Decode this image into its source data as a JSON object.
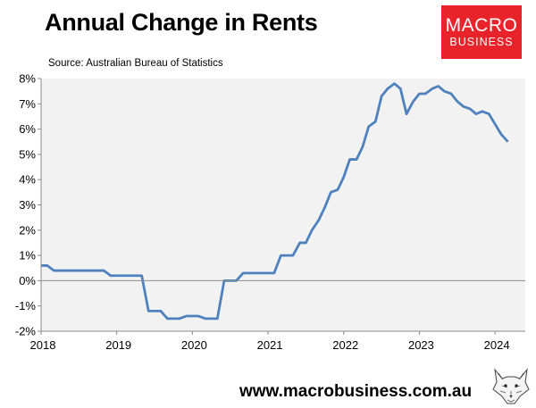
{
  "header": {
    "title": "Annual Change in Rents",
    "source": "Source: Australian Bureau of Statistics"
  },
  "logo": {
    "line1": "MACRO",
    "line2": "BUSINESS",
    "color": "#e8232a"
  },
  "footer": {
    "url": "www.macrobusiness.com.au",
    "mascot_icon": "fox-sketch-icon"
  },
  "chart_data": {
    "type": "line",
    "title": "Annual Change in Rents",
    "xlabel": "",
    "ylabel": "",
    "xlim": [
      2018,
      2024.4
    ],
    "ylim": [
      -2,
      8
    ],
    "grid": false,
    "background_color": "#f2f2f2",
    "line_color": "#4f81bd",
    "x_ticks": [
      2018,
      2019,
      2020,
      2021,
      2022,
      2023,
      2024
    ],
    "x_tick_labels": [
      "2018",
      "2019",
      "2020",
      "2021",
      "2022",
      "2023",
      "2024"
    ],
    "y_ticks": [
      -2,
      -1,
      0,
      1,
      2,
      3,
      4,
      5,
      6,
      7,
      8
    ],
    "y_tick_labels": [
      "-2%",
      "-1%",
      "0%",
      "1%",
      "2%",
      "3%",
      "4%",
      "5%",
      "6%",
      "7%",
      "8%"
    ],
    "series": [
      {
        "name": "",
        "x": [
          2018.0,
          2018.08,
          2018.17,
          2018.25,
          2018.33,
          2018.42,
          2018.5,
          2018.58,
          2018.67,
          2018.75,
          2018.83,
          2018.92,
          2019.0,
          2019.08,
          2019.17,
          2019.25,
          2019.33,
          2019.42,
          2019.5,
          2019.58,
          2019.67,
          2019.75,
          2019.83,
          2019.92,
          2020.0,
          2020.08,
          2020.17,
          2020.25,
          2020.33,
          2020.42,
          2020.5,
          2020.58,
          2020.67,
          2020.75,
          2020.83,
          2020.92,
          2021.0,
          2021.08,
          2021.17,
          2021.25,
          2021.33,
          2021.42,
          2021.5,
          2021.58,
          2021.67,
          2021.75,
          2021.83,
          2021.92,
          2022.0,
          2022.08,
          2022.17,
          2022.25,
          2022.33,
          2022.42,
          2022.5,
          2022.58,
          2022.67,
          2022.75,
          2022.83,
          2022.92,
          2023.0,
          2023.08,
          2023.17,
          2023.25,
          2023.33,
          2023.42,
          2023.5,
          2023.58,
          2023.67,
          2023.75,
          2023.83,
          2023.92,
          2024.0,
          2024.08,
          2024.17
        ],
        "y": [
          0.6,
          0.6,
          0.4,
          0.4,
          0.4,
          0.4,
          0.4,
          0.4,
          0.4,
          0.4,
          0.4,
          0.2,
          0.2,
          0.2,
          0.2,
          0.2,
          0.2,
          -1.2,
          -1.2,
          -1.2,
          -1.5,
          -1.5,
          -1.5,
          -1.4,
          -1.4,
          -1.4,
          -1.5,
          -1.5,
          -1.5,
          0.0,
          0.0,
          0.0,
          0.3,
          0.3,
          0.3,
          0.3,
          0.3,
          0.3,
          1.0,
          1.0,
          1.0,
          1.5,
          1.5,
          2.0,
          2.4,
          2.9,
          3.5,
          3.6,
          4.1,
          4.8,
          4.8,
          5.3,
          6.1,
          6.3,
          7.3,
          7.6,
          7.8,
          7.6,
          6.6,
          7.1,
          7.4,
          7.4,
          7.6,
          7.7,
          7.5,
          7.4,
          7.1,
          6.9,
          6.8,
          6.6,
          6.7,
          6.6,
          6.2,
          5.8,
          5.5
        ]
      }
    ]
  }
}
